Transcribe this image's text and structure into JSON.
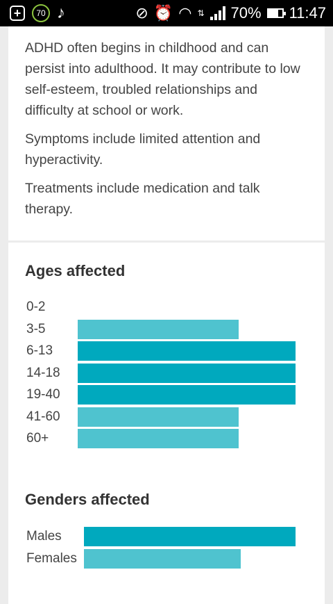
{
  "status_bar": {
    "notification_badge": "70",
    "battery_text": "70%",
    "time": "11:47"
  },
  "about": {
    "paragraphs": [
      "ADHD often begins in childhood and can persist into adulthood. It may contribute to low self-esteem, troubled relationships and difficulty at school or work.",
      "Symptoms include limited attention and hyperactivity.",
      "Treatments include medication and talk therapy."
    ]
  },
  "ages": {
    "heading": "Ages affected"
  },
  "genders": {
    "heading": "Genders affected"
  },
  "colors": {
    "bar_dark": "#00a9be",
    "bar_light": "#4fc3cf"
  },
  "chart_data": [
    {
      "type": "bar",
      "orientation": "horizontal",
      "title": "Ages affected",
      "categories": [
        "0-2",
        "3-5",
        "6-13",
        "14-18",
        "19-40",
        "41-60",
        "60+"
      ],
      "values": [
        0,
        0.74,
        1.0,
        1.0,
        1.0,
        0.74,
        0.74
      ],
      "xlim": [
        0,
        1
      ],
      "grid": false
    },
    {
      "type": "bar",
      "orientation": "horizontal",
      "title": "Genders affected",
      "categories": [
        "Males",
        "Females"
      ],
      "values": [
        1.0,
        0.74
      ],
      "xlim": [
        0,
        1
      ],
      "grid": false
    }
  ]
}
